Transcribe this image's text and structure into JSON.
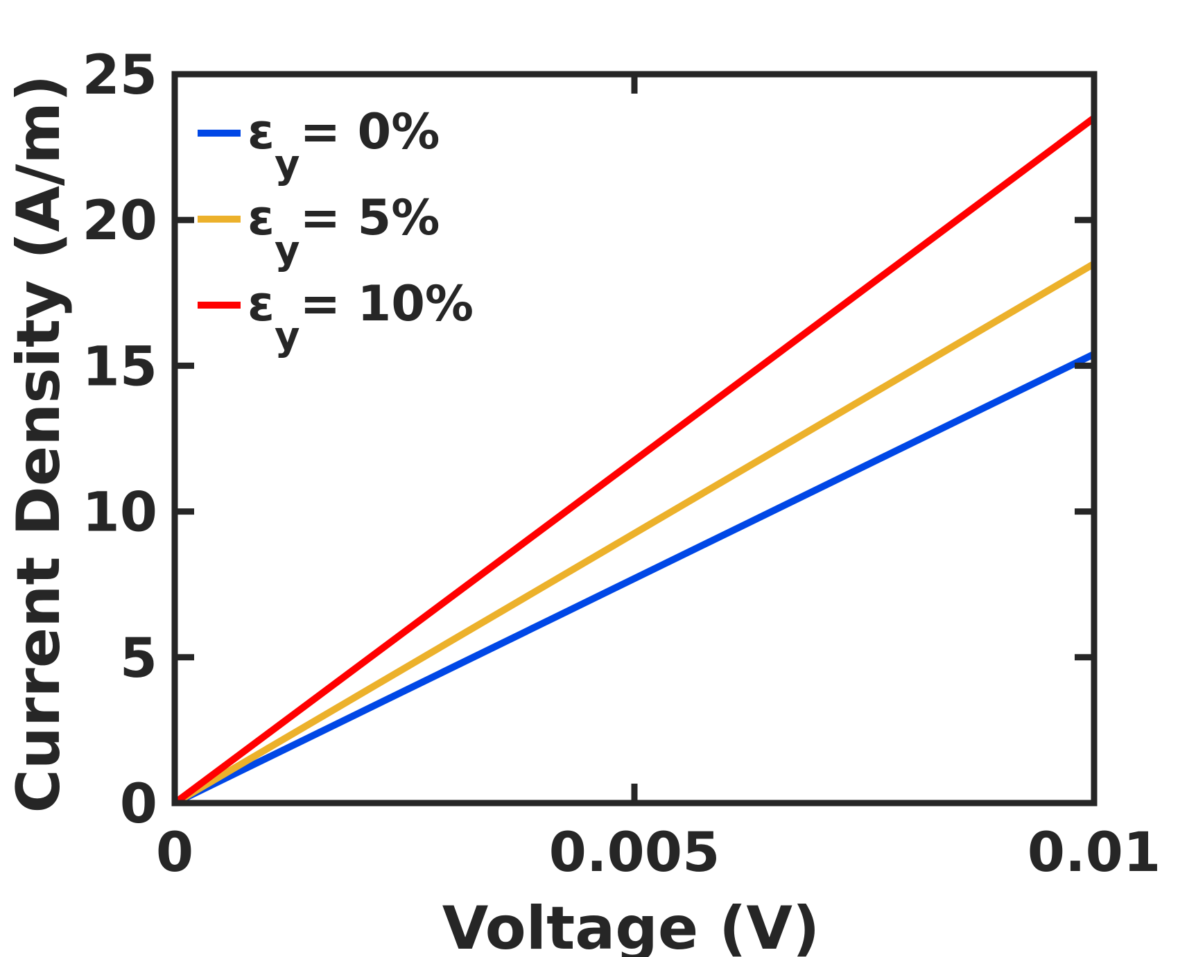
{
  "chart_data": {
    "type": "line",
    "title": "",
    "xlabel": "Voltage (V)",
    "ylabel": "Current Density (A/m)",
    "xlim": [
      0,
      0.01
    ],
    "ylim": [
      0,
      25
    ],
    "xticks": [
      0,
      0.005,
      0.01
    ],
    "xtick_labels": [
      "0",
      "0.005",
      "0.01"
    ],
    "yticks": [
      0,
      5,
      10,
      15,
      20,
      25
    ],
    "ytick_labels": [
      "0",
      "5",
      "10",
      "15",
      "20",
      "25"
    ],
    "grid": false,
    "legend_position": "top-left",
    "series": [
      {
        "name": "ε_y= 0%",
        "symbol": "ε",
        "subscript": "y",
        "label_rest": "= 0%",
        "color": "#0047e6",
        "x": [
          0,
          0.01
        ],
        "y": [
          0,
          15.4
        ]
      },
      {
        "name": "ε_y= 5%",
        "symbol": "ε",
        "subscript": "y",
        "label_rest": "= 5%",
        "color": "#ecb12b",
        "x": [
          0,
          0.01
        ],
        "y": [
          0,
          18.5
        ]
      },
      {
        "name": "ε_y= 10%",
        "symbol": "ε",
        "subscript": "y",
        "label_rest": "= 10%",
        "color": "#ff0000",
        "x": [
          0,
          0.01
        ],
        "y": [
          0,
          23.5
        ]
      }
    ]
  }
}
